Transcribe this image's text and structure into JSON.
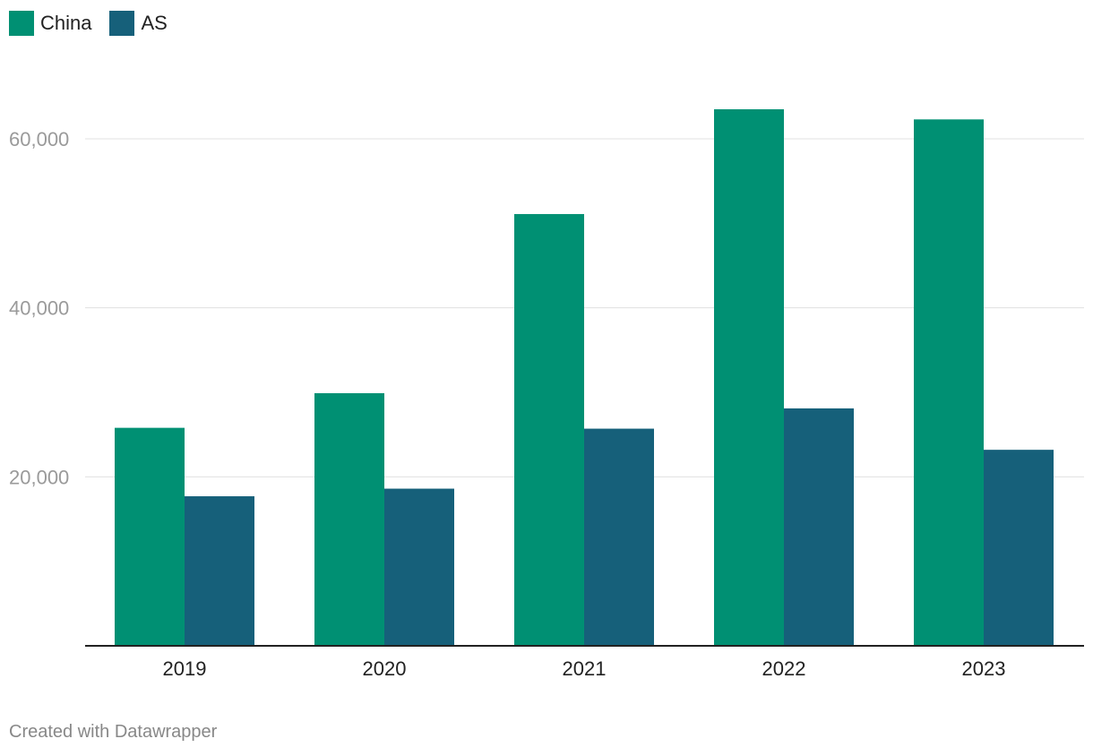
{
  "chart_data": {
    "type": "bar",
    "categories": [
      "2019",
      "2020",
      "2021",
      "2022",
      "2023"
    ],
    "series": [
      {
        "name": "China",
        "color": "#009073",
        "values": [
          25800,
          29900,
          51100,
          63500,
          62300
        ]
      },
      {
        "name": "AS",
        "color": "#16607a",
        "values": [
          17700,
          18600,
          25700,
          28100,
          23200
        ]
      }
    ],
    "yticks": [
      20000,
      40000,
      60000
    ],
    "ytick_labels": [
      "20,000",
      "40,000",
      "60,000"
    ],
    "ylim": [
      0,
      70000
    ],
    "grid": true,
    "legend_position": "top-left"
  },
  "footer": {
    "credit": "Created with Datawrapper"
  }
}
